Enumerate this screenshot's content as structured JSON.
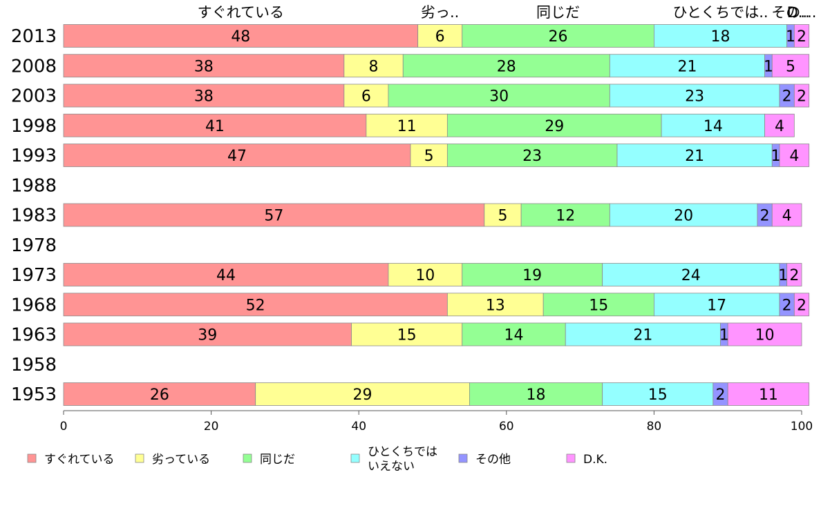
{
  "chart_data": {
    "type": "bar",
    "orientation": "horizontal",
    "stacked": true,
    "xlim": [
      0,
      100
    ],
    "xticks": [
      0,
      20,
      40,
      60,
      80,
      100
    ],
    "top_labels": [
      "すぐれている",
      "劣っ..",
      "同じだ",
      "ひとくちでは..",
      "その..",
      "D...."
    ],
    "categories": [
      "2013",
      "2008",
      "2003",
      "1998",
      "1993",
      "1988",
      "1983",
      "1978",
      "1973",
      "1968",
      "1963",
      "1958",
      "1953"
    ],
    "series": [
      {
        "name": "すぐれている",
        "color": "#ff9494",
        "values": [
          48,
          38,
          38,
          41,
          47,
          null,
          57,
          null,
          44,
          52,
          39,
          null,
          26
        ]
      },
      {
        "name": "劣っている",
        "color": "#ffff94",
        "values": [
          6,
          8,
          6,
          11,
          5,
          null,
          5,
          null,
          10,
          13,
          15,
          null,
          29
        ]
      },
      {
        "name": "同じだ",
        "color": "#94ff94",
        "values": [
          26,
          28,
          30,
          29,
          23,
          null,
          12,
          null,
          19,
          15,
          14,
          null,
          18
        ]
      },
      {
        "name": "ひとくちでは\nいえない",
        "color": "#94ffff",
        "values": [
          18,
          21,
          23,
          14,
          21,
          null,
          20,
          null,
          24,
          17,
          21,
          null,
          15
        ]
      },
      {
        "name": "その他",
        "color": "#9494ff",
        "values": [
          1,
          1,
          2,
          0,
          1,
          null,
          2,
          null,
          1,
          2,
          1,
          null,
          2
        ]
      },
      {
        "name": "D.K.",
        "color": "#ff94ff",
        "values": [
          2,
          5,
          2,
          4,
          4,
          null,
          4,
          null,
          2,
          2,
          10,
          null,
          11
        ]
      }
    ]
  }
}
